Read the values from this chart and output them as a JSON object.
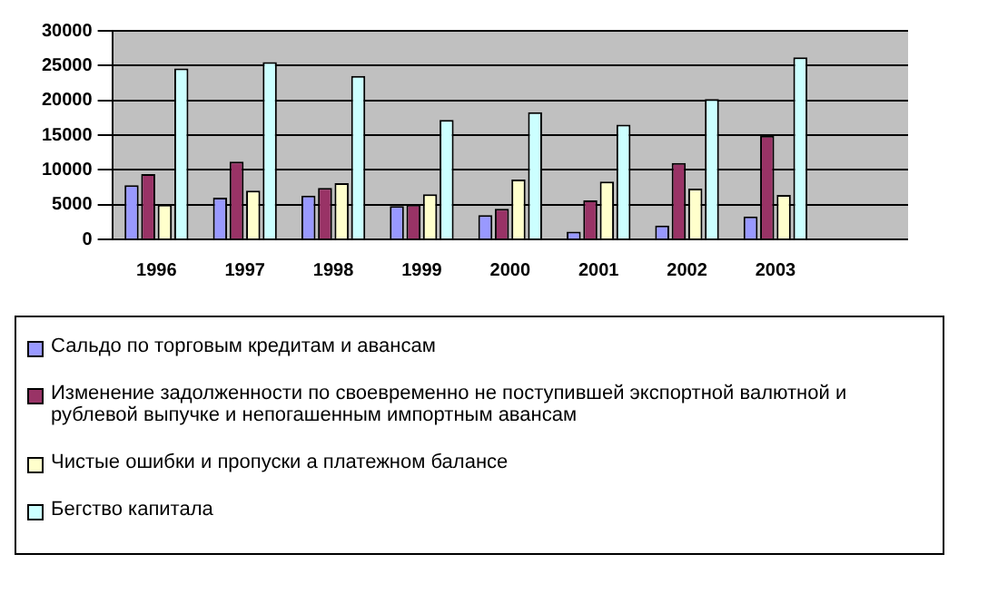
{
  "chart_data": {
    "type": "bar",
    "categories": [
      "1996",
      "1997",
      "1998",
      "1999",
      "2000",
      "2001",
      "2002",
      "2003",
      null
    ],
    "series": [
      {
        "name": "Сальдо по торговым кредитам и авансам",
        "color": "#9999ff",
        "values": [
          7800,
          6000,
          6300,
          4800,
          3500,
          1100,
          2000,
          3300,
          null
        ]
      },
      {
        "name": "Изменение задолженности по своевременно не поступившей экспортной валютной и рублевой выпучке и непогашенным импортным авансам",
        "color": "#993366",
        "values": [
          9400,
          11200,
          7400,
          5000,
          4400,
          5600,
          11000,
          14900,
          null
        ]
      },
      {
        "name": "Чистые ошибки и пропуски а платежном балансе",
        "color": "#ffffcc",
        "values": [
          5000,
          7000,
          8100,
          6500,
          8600,
          8300,
          7300,
          6400,
          null
        ]
      },
      {
        "name": "Бегство капитала",
        "color": "#ccffff",
        "values": [
          24600,
          25500,
          23500,
          17200,
          18300,
          16500,
          20200,
          26200,
          null
        ]
      }
    ],
    "ylim": [
      0,
      30000
    ],
    "yticks": [
      0,
      5000,
      10000,
      15000,
      20000,
      25000,
      30000
    ],
    "grid": "y",
    "legend": "bottom"
  }
}
